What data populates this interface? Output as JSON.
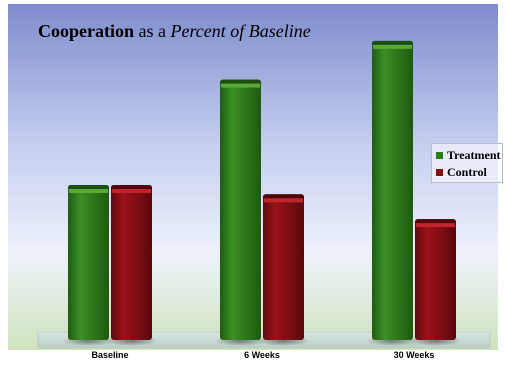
{
  "chart_data": {
    "type": "bar",
    "title": {
      "part1": "Cooperation",
      "part2": " as a ",
      "part3": "Percent of Baseline"
    },
    "categories": [
      "Baseline",
      "6 Weeks",
      "30 Weeks"
    ],
    "series": [
      {
        "name": "Treatment",
        "values": [
          100,
          168,
          193
        ],
        "color": "#2e7d1c"
      },
      {
        "name": "Control",
        "values": [
          100,
          94,
          78
        ],
        "color": "#8b0a12"
      }
    ],
    "xlabel": "",
    "ylabel": "",
    "ylim": [
      0,
      200
    ],
    "grid": false,
    "legend_position": "right"
  },
  "colors": {
    "background_top": "#8e9bd6",
    "background_bottom": "#d6e8c8",
    "floor": "#c9dcd6"
  }
}
